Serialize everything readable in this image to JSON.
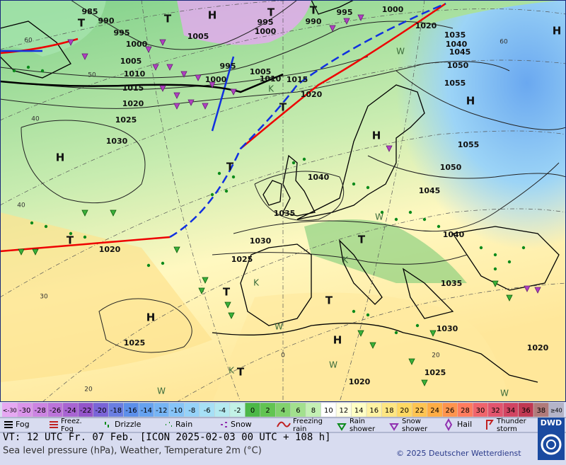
{
  "map": {
    "isobar_labels": [
      985,
      990,
      995,
      1000,
      1005,
      995,
      1000,
      990,
      995,
      1000,
      1020,
      1035,
      1040,
      1045,
      1050,
      1055,
      1005,
      1010,
      1015,
      1020,
      1025,
      1030,
      995,
      1000,
      1005,
      1010,
      1015,
      1020,
      1055,
      1050,
      1040,
      1045,
      1035,
      1040,
      1030,
      1020,
      1025,
      1035,
      1030,
      1025,
      1020,
      1025,
      1020
    ],
    "pressure_centers": [
      "H",
      "T",
      "T",
      "T",
      "H",
      "H",
      "H",
      "H",
      "T",
      "T",
      "T",
      "T",
      "T",
      "H",
      "H",
      "T",
      "T",
      "T"
    ],
    "grid_labels": [
      60,
      50,
      40,
      40,
      30,
      20,
      60,
      0,
      20
    ],
    "markers": [
      "K",
      "K",
      "W",
      "W",
      "W",
      "K",
      "W",
      "K",
      "W",
      "W"
    ]
  },
  "legend": {
    "temperature_scale": {
      "low_label": "<-30",
      "values": [
        -30,
        -28,
        -26,
        -24,
        -22,
        -20,
        -18,
        -16,
        -14,
        -12,
        -10,
        -8,
        -6,
        -4,
        -2,
        0,
        2,
        4,
        6,
        8,
        10,
        12,
        14,
        16,
        18,
        20,
        22,
        24,
        26,
        28,
        30,
        32,
        34,
        36,
        38
      ],
      "high_label": "≥40",
      "low_color": "#e6a8f2",
      "colors": [
        "#da94ea",
        "#cc84e2",
        "#bc74da",
        "#a864d2",
        "#9454ca",
        "#7a64d8",
        "#6a7ee2",
        "#5c8fea",
        "#66a2f0",
        "#76b4f4",
        "#86c4f8",
        "#96d2f8",
        "#a6e0f6",
        "#b4eaf0",
        "#c2f2e6",
        "#4cb848",
        "#62c452",
        "#82d26e",
        "#a2e08e",
        "#c4f0b4",
        "#ffffff",
        "#ffffe2",
        "#ffffc4",
        "#fff2a2",
        "#ffe682",
        "#ffd862",
        "#ffc452",
        "#ffac44",
        "#ff944e",
        "#ff7c5e",
        "#f0646c",
        "#e2546e",
        "#d24462",
        "#c03852",
        "#b07a7a"
      ],
      "high_color": "#b4b4c8"
    },
    "symbols": [
      "Fog",
      "Freez.\nFog",
      "Drizzle",
      "Rain",
      "Snow",
      "Freezing\nrain",
      "Rain\nshower",
      "Snow\nshower",
      "Hail",
      "Thunder\nstorm"
    ]
  },
  "footer": {
    "valid_time": "VT: 12 UTC Fr.  07 Feb. [ICON 2025-02-03  00 UTC + 108 h]",
    "description": "Sea level pressure (hPa), Weather, Temperature 2m (°C)",
    "copyright": "© 2025 Deutscher Wetterdienst",
    "logo": "DWD"
  }
}
